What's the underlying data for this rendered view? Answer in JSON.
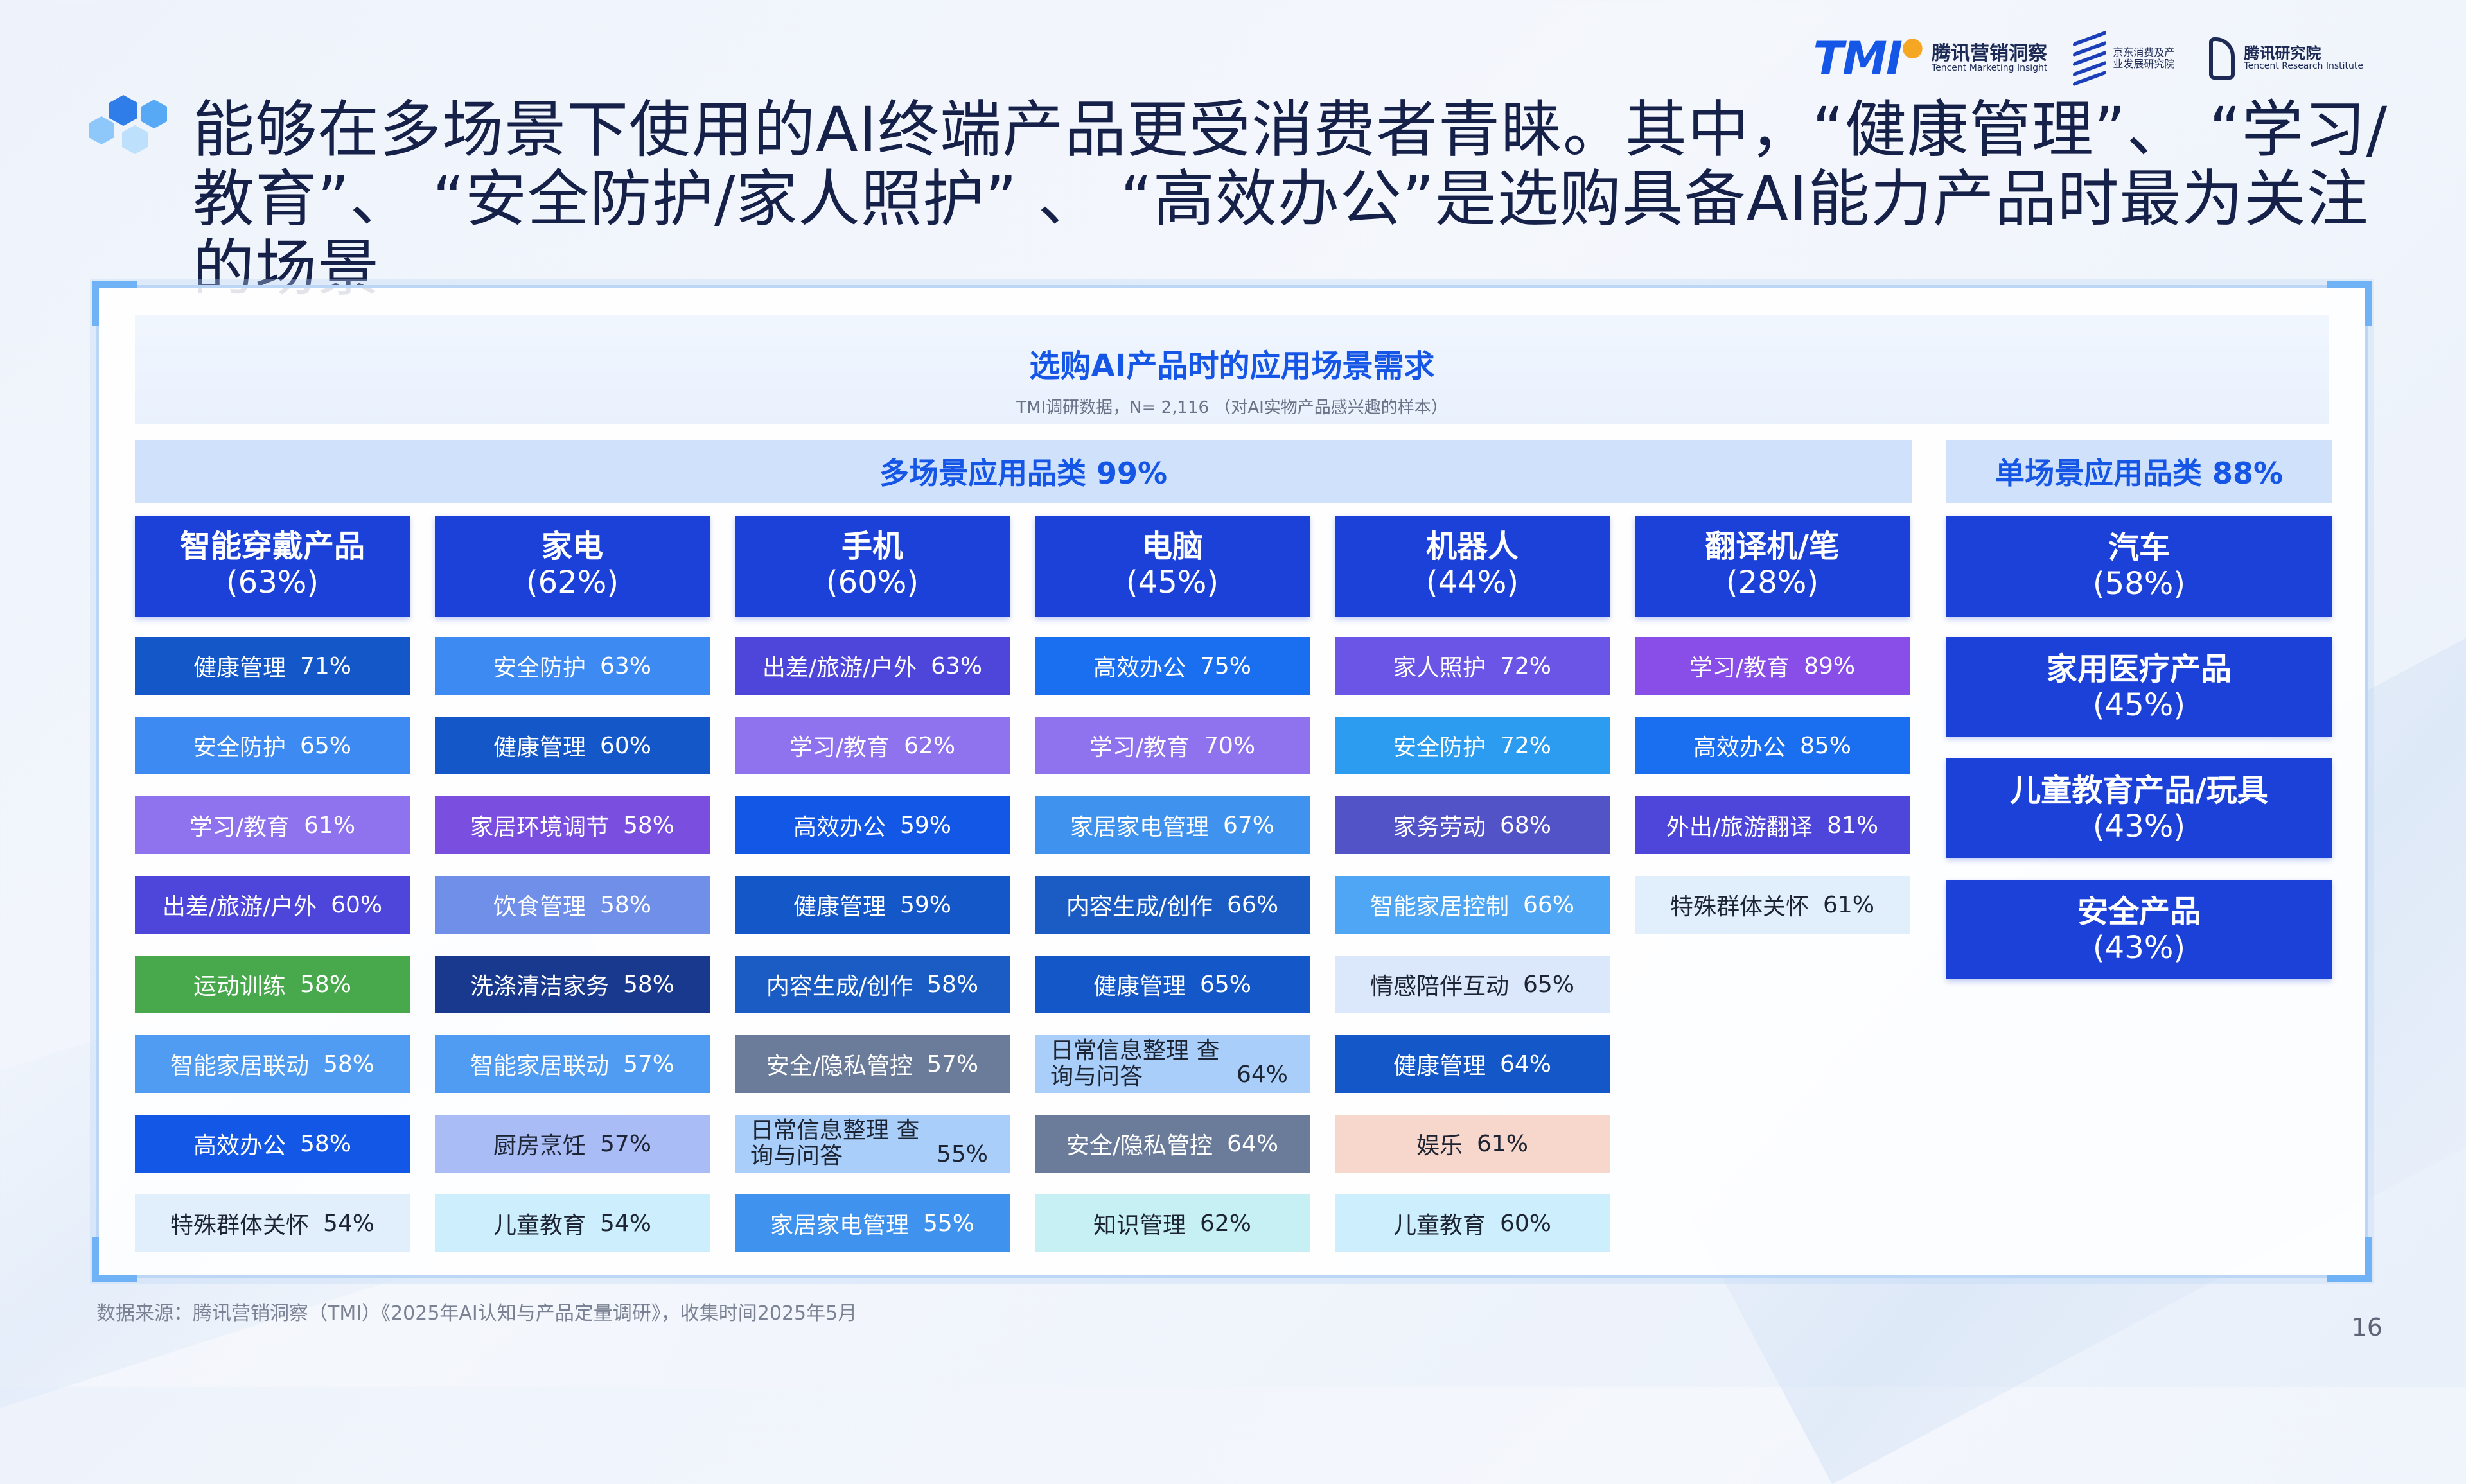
{
  "title": "能够在多场景下使用的AI终端产品更受消费者青睐。其中，“健康管理”、 “学习/教育”、 “安全防护/家人照护” 、 “高效办公”是选购具备AI能力产品时最为关注的场景",
  "logos": {
    "tmi_mark": "TMI",
    "tmi_cn": "腾讯营销洞察",
    "tmi_en": "Tencent Marketing Insight",
    "jd_text": "京东消费及产业发展研究院",
    "tx_cn": "腾讯研究院",
    "tx_en": "Tencent Research Institute"
  },
  "chart_title": "选购AI产品时的应用场景需求",
  "chart_subtitle": "TMI调研数据，N= 2,116 （对AI实物产品感兴趣的样本）",
  "multi_group": "多场景应用品类 99%",
  "single_group": "单场景应用品类 88%",
  "columns": [
    {
      "name": "智能穿戴产品",
      "pct": "(63%)",
      "items": [
        {
          "label": "健康管理",
          "value": "71%",
          "color": "#1357c8",
          "text": "#ffffff"
        },
        {
          "label": "安全防护",
          "value": "65%",
          "color": "#3d8af2",
          "text": "#ffffff"
        },
        {
          "label": "学习/教育",
          "value": "61%",
          "color": "#8f73ee",
          "text": "#ffffff"
        },
        {
          "label": "出差/旅游/户外",
          "value": "60%",
          "color": "#4e45da",
          "text": "#ffffff"
        },
        {
          "label": "运动训练",
          "value": "58%",
          "color": "#47a84c",
          "text": "#ffffff"
        },
        {
          "label": "智能家居联动",
          "value": "58%",
          "color": "#4f9cf2",
          "text": "#ffffff"
        },
        {
          "label": "高效办公",
          "value": "58%",
          "color": "#1357e6",
          "text": "#ffffff"
        },
        {
          "label": "特殊群体关怀",
          "value": "54%",
          "color": "#e1eefb",
          "text": "#1d2433"
        }
      ]
    },
    {
      "name": "家电",
      "pct": "(62%)",
      "items": [
        {
          "label": "安全防护",
          "value": "63%",
          "color": "#3d8af2",
          "text": "#ffffff"
        },
        {
          "label": "健康管理",
          "value": "60%",
          "color": "#1357c8",
          "text": "#ffffff"
        },
        {
          "label": "家居环境调节",
          "value": "58%",
          "color": "#7a4fe0",
          "text": "#ffffff"
        },
        {
          "label": "饮食管理",
          "value": "58%",
          "color": "#6f8fe8",
          "text": "#ffffff"
        },
        {
          "label": "洗涤清洁家务",
          "value": "58%",
          "color": "#19398f",
          "text": "#ffffff"
        },
        {
          "label": "智能家居联动",
          "value": "57%",
          "color": "#4f9cf2",
          "text": "#ffffff"
        },
        {
          "label": "厨房烹饪",
          "value": "57%",
          "color": "#aabcf5",
          "text": "#1d2433"
        },
        {
          "label": "儿童教育",
          "value": "54%",
          "color": "#cdeefc",
          "text": "#1d2433"
        }
      ]
    },
    {
      "name": "手机",
      "pct": "(60%)",
      "items": [
        {
          "label": "出差/旅游/户外",
          "value": "63%",
          "color": "#4e45da",
          "text": "#ffffff"
        },
        {
          "label": "学习/教育",
          "value": "62%",
          "color": "#8f73ee",
          "text": "#ffffff"
        },
        {
          "label": "高效办公",
          "value": "59%",
          "color": "#1357e6",
          "text": "#ffffff"
        },
        {
          "label": "健康管理",
          "value": "59%",
          "color": "#1357c8",
          "text": "#ffffff"
        },
        {
          "label": "内容生成/创作",
          "value": "58%",
          "color": "#1a5cc4",
          "text": "#ffffff"
        },
        {
          "label": "安全/隐私管控",
          "value": "57%",
          "color": "#6b7c9a",
          "text": "#ffffff"
        },
        {
          "label": "日常信息整理 查询与问答",
          "value": "55%",
          "color": "#a8cef9",
          "text": "#1d2433",
          "two": true
        },
        {
          "label": "家居家电管理",
          "value": "55%",
          "color": "#3f93ee",
          "text": "#ffffff"
        }
      ]
    },
    {
      "name": "电脑",
      "pct": "(45%)",
      "items": [
        {
          "label": "高效办公",
          "value": "75%",
          "color": "#1a6ff0",
          "text": "#ffffff"
        },
        {
          "label": "学习/教育",
          "value": "70%",
          "color": "#8f73ee",
          "text": "#ffffff"
        },
        {
          "label": "家居家电管理",
          "value": "67%",
          "color": "#3f93ee",
          "text": "#ffffff"
        },
        {
          "label": "内容生成/创作",
          "value": "66%",
          "color": "#1a5cc4",
          "text": "#ffffff"
        },
        {
          "label": "健康管理",
          "value": "65%",
          "color": "#1357c8",
          "text": "#ffffff"
        },
        {
          "label": "日常信息整理 查询与问答",
          "value": "64%",
          "color": "#a8cef9",
          "text": "#1d2433",
          "two": true
        },
        {
          "label": "安全/隐私管控",
          "value": "64%",
          "color": "#6b7c9a",
          "text": "#ffffff"
        },
        {
          "label": "知识管理",
          "value": "62%",
          "color": "#c7f0f4",
          "text": "#1d2433"
        }
      ]
    },
    {
      "name": "机器人",
      "pct": "(44%)",
      "items": [
        {
          "label": "家人照护",
          "value": "72%",
          "color": "#6a55e6",
          "text": "#ffffff"
        },
        {
          "label": "安全防护",
          "value": "72%",
          "color": "#2b9cf0",
          "text": "#ffffff"
        },
        {
          "label": "家务劳动",
          "value": "68%",
          "color": "#5353c8",
          "text": "#ffffff"
        },
        {
          "label": "智能家居控制",
          "value": "66%",
          "color": "#4ea6f4",
          "text": "#ffffff"
        },
        {
          "label": "情感陪伴互动",
          "value": "65%",
          "color": "#dbe8fb",
          "text": "#1d2433"
        },
        {
          "label": "健康管理",
          "value": "64%",
          "color": "#1357c8",
          "text": "#ffffff"
        },
        {
          "label": "娱乐",
          "value": "61%",
          "color": "#f7d6cc",
          "text": "#1d2433"
        },
        {
          "label": "儿童教育",
          "value": "60%",
          "color": "#cdeefc",
          "text": "#1d2433"
        }
      ]
    },
    {
      "name": "翻译机/笔",
      "pct": "(28%)",
      "items": [
        {
          "label": "学习/教育",
          "value": "89%",
          "color": "#8a4ee8",
          "text": "#ffffff"
        },
        {
          "label": "高效办公",
          "value": "85%",
          "color": "#1a6ff0",
          "text": "#ffffff"
        },
        {
          "label": "外出/旅游翻译",
          "value": "81%",
          "color": "#4e45da",
          "text": "#ffffff"
        },
        {
          "label": "特殊群体关怀",
          "value": "61%",
          "color": "#e1eefb",
          "text": "#1d2433"
        }
      ]
    }
  ],
  "single": [
    {
      "name": "汽车",
      "pct": "(58%)"
    },
    {
      "name": "家用医疗产品",
      "pct": "(45%)"
    },
    {
      "name": "儿童教育产品/玩具",
      "pct": "(43%)"
    },
    {
      "name": "安全产品",
      "pct": "(43%)"
    }
  ],
  "source": "数据来源：腾讯营销洞察（TMI）《2025年AI认知与产品定量调研》，收集时间2025年5月",
  "page_number": "16"
}
